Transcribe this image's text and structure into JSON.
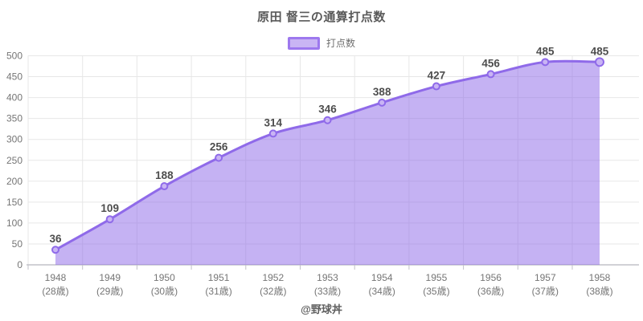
{
  "page": {
    "title": "原田 督三の通算打点数",
    "footer": "@野球丼"
  },
  "legend": {
    "label": "打点数"
  },
  "colors": {
    "line": "#8f6ae9",
    "area_fill": "#8c66e8",
    "area_opacity": 0.5,
    "marker_fill": "#c9b4f4",
    "legend_fill": "#c9b5f4",
    "legend_border": "#9d78ee",
    "grid": "#e7e7e7",
    "axis": "#c2c2c8",
    "tick_text": "#757575",
    "data_label": "#4d4d4d",
    "title_text": "#595959"
  },
  "chart_data": {
    "type": "area",
    "title": "原田 督三の通算打点数",
    "smooth": true,
    "grid": true,
    "legend_position": "top",
    "legend": [
      "打点数"
    ],
    "categories": [
      "1948",
      "1949",
      "1950",
      "1951",
      "1952",
      "1953",
      "1954",
      "1955",
      "1956",
      "1957",
      "1958"
    ],
    "category_sublabels": [
      "(28歳)",
      "(29歳)",
      "(30歳)",
      "(31歳)",
      "(32歳)",
      "(33歳)",
      "(34歳)",
      "(35歳)",
      "(36歳)",
      "(37歳)",
      "(38歳)"
    ],
    "series": [
      {
        "name": "打点数",
        "values": [
          36,
          109,
          188,
          256,
          314,
          346,
          388,
          427,
          456,
          485,
          485
        ]
      }
    ],
    "show_point_labels": true,
    "xlabel": "",
    "ylabel": "",
    "ylim": [
      0,
      500
    ],
    "ytick_step": 50,
    "yticks": [
      0,
      50,
      100,
      150,
      200,
      250,
      300,
      350,
      400,
      450,
      500
    ]
  }
}
